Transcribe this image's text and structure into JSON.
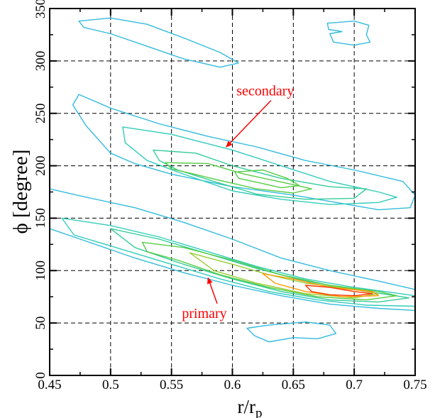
{
  "chart_data": {
    "type": "contour",
    "xlabel": "r/r",
    "xlabel_sub": "p",
    "ylabel": "ϕ [degree]",
    "xlim": [
      0.45,
      0.75
    ],
    "ylim": [
      0,
      350
    ],
    "xticks": [
      0.45,
      0.5,
      0.55,
      0.6,
      0.65,
      0.7,
      0.75
    ],
    "xtick_labels": [
      "0.45",
      "0.5",
      "0.55",
      "0.6",
      "0.65",
      "0.7",
      "0.75"
    ],
    "yticks": [
      0,
      50,
      100,
      150,
      200,
      250,
      300,
      350
    ],
    "ytick_labels": [
      "0",
      "50",
      "100",
      "150",
      "200",
      "250",
      "300",
      "350"
    ],
    "grid": true,
    "level_colors": [
      "#33bbdd",
      "#33ccbb",
      "#33cc99",
      "#55cc44",
      "#99cc33",
      "#ff9900",
      "#ff3300"
    ],
    "contours": [
      {
        "level": 0,
        "points": [
          [
            0.474,
            338
          ],
          [
            0.5,
            341
          ],
          [
            0.53,
            335
          ],
          [
            0.56,
            322
          ],
          [
            0.59,
            308
          ],
          [
            0.605,
            298
          ],
          [
            0.59,
            294
          ],
          [
            0.56,
            302
          ],
          [
            0.53,
            314
          ],
          [
            0.5,
            326
          ],
          [
            0.478,
            332
          ]
        ]
      },
      {
        "level": 0,
        "points": [
          [
            0.678,
            336
          ],
          [
            0.7,
            338
          ],
          [
            0.712,
            334
          ],
          [
            0.71,
            325
          ],
          [
            0.713,
            318
          ],
          [
            0.7,
            315
          ],
          [
            0.683,
            318
          ],
          [
            0.68,
            326
          ],
          [
            0.69,
            328
          ],
          [
            0.679,
            330
          ]
        ]
      },
      {
        "level": 0,
        "points": [
          [
            0.474,
            268
          ],
          [
            0.5,
            255
          ],
          [
            0.54,
            240
          ],
          [
            0.58,
            228
          ],
          [
            0.62,
            218
          ],
          [
            0.66,
            205
          ],
          [
            0.7,
            196
          ],
          [
            0.74,
            185
          ],
          [
            0.75,
            172
          ],
          [
            0.746,
            160
          ],
          [
            0.72,
            158
          ],
          [
            0.69,
            164
          ],
          [
            0.65,
            172
          ],
          [
            0.6,
            180
          ],
          [
            0.55,
            192
          ],
          [
            0.52,
            202
          ],
          [
            0.5,
            212
          ],
          [
            0.48,
            238
          ],
          [
            0.469,
            258
          ]
        ]
      },
      {
        "level": 1,
        "points": [
          [
            0.51,
            237
          ],
          [
            0.55,
            230
          ],
          [
            0.6,
            215
          ],
          [
            0.64,
            200
          ],
          [
            0.68,
            185
          ],
          [
            0.72,
            175
          ],
          [
            0.735,
            170
          ],
          [
            0.72,
            165
          ],
          [
            0.68,
            163
          ],
          [
            0.64,
            168
          ],
          [
            0.6,
            176
          ],
          [
            0.56,
            192
          ],
          [
            0.53,
            205
          ],
          [
            0.512,
            222
          ]
        ]
      },
      {
        "level": 2,
        "points": [
          [
            0.535,
            215
          ],
          [
            0.57,
            212
          ],
          [
            0.6,
            200
          ],
          [
            0.64,
            188
          ],
          [
            0.68,
            180
          ],
          [
            0.71,
            178
          ],
          [
            0.7,
            169
          ],
          [
            0.66,
            168
          ],
          [
            0.62,
            173
          ],
          [
            0.585,
            185
          ],
          [
            0.555,
            196
          ],
          [
            0.54,
            205
          ]
        ]
      },
      {
        "level": 3,
        "points": [
          [
            0.545,
            203
          ],
          [
            0.58,
            202
          ],
          [
            0.61,
            192
          ],
          [
            0.65,
            182
          ],
          [
            0.665,
            178
          ],
          [
            0.65,
            174
          ],
          [
            0.62,
            178
          ],
          [
            0.59,
            186
          ],
          [
            0.565,
            193
          ],
          [
            0.55,
            197
          ]
        ]
      },
      {
        "level": 3,
        "points": [
          [
            0.602,
            194
          ],
          [
            0.625,
            196
          ],
          [
            0.645,
            188
          ],
          [
            0.655,
            181
          ],
          [
            0.64,
            179
          ],
          [
            0.625,
            183
          ],
          [
            0.605,
            188
          ]
        ]
      },
      {
        "level": 0,
        "points": [
          [
            0.45,
            178
          ],
          [
            0.48,
            170
          ],
          [
            0.52,
            160
          ],
          [
            0.56,
            146
          ],
          [
            0.6,
            130
          ],
          [
            0.64,
            112
          ],
          [
            0.68,
            100
          ],
          [
            0.72,
            90
          ],
          [
            0.75,
            82
          ],
          [
            0.75,
            62
          ],
          [
            0.72,
            64
          ],
          [
            0.68,
            68
          ],
          [
            0.64,
            76
          ],
          [
            0.6,
            86
          ],
          [
            0.56,
            98
          ],
          [
            0.52,
            112
          ],
          [
            0.48,
            128
          ],
          [
            0.45,
            140
          ]
        ]
      },
      {
        "level": 1,
        "points": [
          [
            0.46,
            150
          ],
          [
            0.5,
            143
          ],
          [
            0.54,
            132
          ],
          [
            0.58,
            118
          ],
          [
            0.62,
            104
          ],
          [
            0.66,
            92
          ],
          [
            0.7,
            84
          ],
          [
            0.75,
            76
          ],
          [
            0.75,
            66
          ],
          [
            0.71,
            67
          ],
          [
            0.67,
            72
          ],
          [
            0.63,
            80
          ],
          [
            0.59,
            92
          ],
          [
            0.55,
            106
          ],
          [
            0.51,
            120
          ],
          [
            0.47,
            134
          ]
        ]
      },
      {
        "level": 2,
        "points": [
          [
            0.5,
            140
          ],
          [
            0.54,
            130
          ],
          [
            0.58,
            116
          ],
          [
            0.62,
            102
          ],
          [
            0.66,
            90
          ],
          [
            0.7,
            82
          ],
          [
            0.745,
            74
          ],
          [
            0.72,
            70
          ],
          [
            0.68,
            72
          ],
          [
            0.64,
            80
          ],
          [
            0.6,
            92
          ],
          [
            0.56,
            106
          ],
          [
            0.52,
            122
          ]
        ]
      },
      {
        "level": 3,
        "points": [
          [
            0.526,
            127
          ],
          [
            0.56,
            122
          ],
          [
            0.6,
            110
          ],
          [
            0.64,
            96
          ],
          [
            0.68,
            86
          ],
          [
            0.72,
            80
          ],
          [
            0.735,
            76
          ],
          [
            0.71,
            72
          ],
          [
            0.67,
            75
          ],
          [
            0.63,
            84
          ],
          [
            0.59,
            96
          ],
          [
            0.555,
            110
          ],
          [
            0.53,
            118
          ]
        ]
      },
      {
        "level": 4,
        "points": [
          [
            0.565,
            117
          ],
          [
            0.6,
            106
          ],
          [
            0.63,
            96
          ],
          [
            0.66,
            88
          ],
          [
            0.7,
            82
          ],
          [
            0.72,
            78
          ],
          [
            0.7,
            74
          ],
          [
            0.66,
            78
          ],
          [
            0.62,
            88
          ],
          [
            0.585,
            100
          ]
        ]
      },
      {
        "level": 5,
        "points": [
          [
            0.625,
            97
          ],
          [
            0.65,
            92
          ],
          [
            0.68,
            84
          ],
          [
            0.715,
            80
          ],
          [
            0.72,
            76
          ],
          [
            0.69,
            75
          ],
          [
            0.66,
            80
          ],
          [
            0.635,
            88
          ]
        ]
      },
      {
        "level": 6,
        "points": [
          [
            0.66,
            86
          ],
          [
            0.68,
            84
          ],
          [
            0.7,
            80
          ],
          [
            0.715,
            78
          ],
          [
            0.7,
            76
          ],
          [
            0.68,
            77
          ],
          [
            0.665,
            80
          ]
        ]
      },
      {
        "level": 0,
        "points": [
          [
            0.63,
            48
          ],
          [
            0.66,
            51
          ],
          [
            0.68,
            48
          ],
          [
            0.685,
            40
          ],
          [
            0.67,
            35
          ],
          [
            0.65,
            36
          ],
          [
            0.63,
            32
          ],
          [
            0.618,
            38
          ],
          [
            0.612,
            45
          ]
        ]
      }
    ],
    "annotations": [
      {
        "text": "secondary",
        "label_x": 0.627,
        "label_y": 267,
        "arrow_to": [
          0.595,
          218
        ]
      },
      {
        "text": "primary",
        "label_x": 0.577,
        "label_y": 55,
        "arrow_to": [
          0.58,
          93
        ]
      }
    ]
  }
}
